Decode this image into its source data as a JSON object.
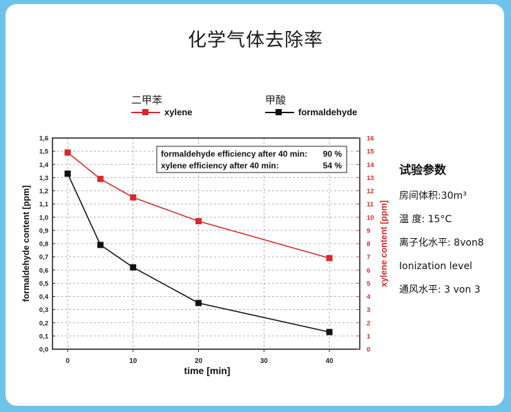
{
  "title": "化学气体去除率",
  "legend": {
    "xylene_cn": "二甲苯",
    "xylene_en": "xylene",
    "formaldehyde_cn": "甲酸",
    "formaldehyde_en": "formaldehyde"
  },
  "colors": {
    "background": "#6ec3ea",
    "xylene": "#d42a2a",
    "formaldehyde": "#111111"
  },
  "params": {
    "title": "试验参数",
    "lines": [
      "房间体积:30m³",
      "温 度: 15°C",
      "离子化水平: 8von8",
      "Ionization level",
      "通风水平: 3 von 3"
    ]
  },
  "chart_data": {
    "type": "line",
    "x": [
      0,
      5,
      10,
      20,
      40
    ],
    "x_ticks": [
      "0",
      "10",
      "20",
      "30",
      "40"
    ],
    "xlabel": "time [min]",
    "ylabel_left": "formaldehyde content [ppm]",
    "ylabel_right": "xylene content [ppm]",
    "ylim_left": [
      0,
      1.6
    ],
    "ylim_right": [
      0,
      16
    ],
    "left_ticks": [
      "0,0",
      "0,1",
      "0,2",
      "0,3",
      "0,4",
      "0,5",
      "0,6",
      "0,7",
      "0,8",
      "0,9",
      "1,0",
      "1,1",
      "1,2",
      "1,3",
      "1,4",
      "1,5",
      "1,6"
    ],
    "right_ticks": [
      "0",
      "1",
      "2",
      "3",
      "4",
      "5",
      "6",
      "7",
      "8",
      "9",
      "10",
      "11",
      "12",
      "13",
      "14",
      "15",
      "16"
    ],
    "grid": true,
    "series": [
      {
        "name": "formaldehyde",
        "axis": "left",
        "values": [
          1.33,
          0.79,
          0.62,
          0.35,
          0.13
        ]
      },
      {
        "name": "xylene",
        "axis": "right",
        "values": [
          14.9,
          12.9,
          11.5,
          9.7,
          6.9
        ]
      }
    ],
    "annotation": {
      "line1_label": "formaldehyde efficiency after 40 min:",
      "line1_value": "90 %",
      "line2_label": "xylene efficiency after  40 min:",
      "line2_value": "54 %"
    }
  }
}
